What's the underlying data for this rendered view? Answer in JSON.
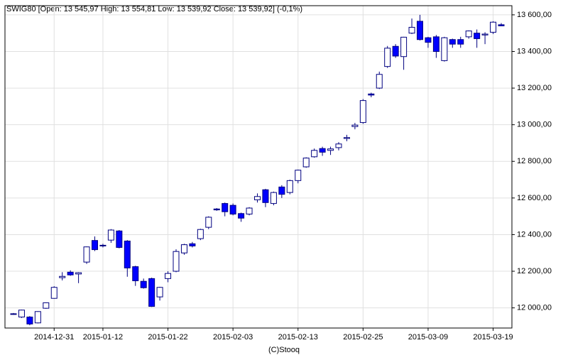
{
  "chart_data": {
    "type": "candlestick",
    "title": "SWIG80 [Open: 13 545,97  High: 13 554,81  Low: 13 539,92  Close: 13 539,92] (-0,1%)",
    "footer": "(C)Stooq",
    "categories": [
      null,
      null,
      null,
      null,
      null,
      "2014-12-31",
      null,
      null,
      null,
      null,
      null,
      "2015-01-12",
      null,
      null,
      null,
      null,
      null,
      null,
      null,
      "2015-01-22",
      null,
      null,
      null,
      null,
      null,
      null,
      null,
      "2015-02-03",
      null,
      null,
      null,
      null,
      null,
      null,
      null,
      "2015-02-13",
      null,
      null,
      null,
      null,
      null,
      null,
      null,
      "2015-02-25",
      null,
      null,
      null,
      null,
      null,
      null,
      null,
      "2015-03-09",
      null,
      null,
      null,
      null,
      null,
      null,
      null,
      "2015-03-19",
      null
    ],
    "open": [
      11965,
      11950,
      11950,
      11918,
      11998,
      12052,
      12165,
      12195,
      12185,
      12250,
      12368,
      12342,
      12370,
      12420,
      12365,
      12225,
      12145,
      12160,
      12060,
      12160,
      12200,
      12300,
      12350,
      12378,
      12440,
      12540,
      12570,
      12560,
      12515,
      12512,
      12590,
      12645,
      12570,
      12660,
      12630,
      12695,
      12770,
      12825,
      12870,
      12860,
      12875,
      12925,
      12990,
      13012,
      13168,
      13200,
      13318,
      13428,
      13372,
      13500,
      13565,
      13475,
      13480,
      13350,
      13465,
      13465,
      13480,
      13500,
      13490,
      13505,
      13545.97
    ],
    "high": [
      11972,
      11990,
      11955,
      11982,
      12030,
      12118,
      12195,
      12205,
      12195,
      12335,
      12390,
      12350,
      12430,
      12425,
      12370,
      12230,
      12160,
      12165,
      12115,
      12200,
      12320,
      12350,
      12360,
      12432,
      12500,
      12545,
      12575,
      12570,
      12520,
      12550,
      12625,
      12650,
      12635,
      12670,
      12700,
      12755,
      12822,
      12870,
      12880,
      12880,
      12905,
      12945,
      13010,
      13140,
      13175,
      13290,
      13430,
      13440,
      13480,
      13580,
      13600,
      13480,
      13490,
      13480,
      13470,
      13480,
      13515,
      13520,
      13505,
      13565,
      13554.81
    ],
    "low": [
      11962,
      11945,
      11905,
      11915,
      11995,
      12050,
      12150,
      12175,
      12135,
      12240,
      12310,
      12330,
      12355,
      12325,
      12170,
      12120,
      12105,
      12005,
      12040,
      12140,
      12195,
      12290,
      12330,
      12370,
      12430,
      12530,
      12500,
      12505,
      12470,
      12505,
      12575,
      12550,
      12560,
      12600,
      12620,
      12680,
      12765,
      12820,
      12830,
      12835,
      12860,
      12910,
      12975,
      13005,
      13150,
      13195,
      13310,
      13365,
      13300,
      13495,
      13460,
      13420,
      13365,
      13345,
      13420,
      13420,
      13470,
      13420,
      13440,
      13495,
      13539.92
    ],
    "close": [
      11968,
      11988,
      11912,
      11980,
      12028,
      12112,
      12172,
      12180,
      12192,
      12333,
      12318,
      12338,
      12425,
      12330,
      12218,
      12148,
      12110,
      12008,
      12112,
      12188,
      12308,
      12345,
      12338,
      12428,
      12495,
      12535,
      12525,
      12512,
      12490,
      12545,
      12608,
      12575,
      12630,
      12620,
      12695,
      12752,
      12818,
      12860,
      12850,
      12868,
      12895,
      12930,
      12998,
      13132,
      13162,
      13275,
      13418,
      13375,
      13478,
      13532,
      13465,
      13450,
      13400,
      13475,
      13440,
      13440,
      13512,
      13470,
      13495,
      13560,
      13539.92
    ],
    "up_color": "#ffffff",
    "down_color": "#0000ff",
    "outline_color": "#000080",
    "ylim": [
      11890,
      13650
    ],
    "yticks": [
      {
        "value": 12000,
        "label": "12 000,00"
      },
      {
        "value": 12200,
        "label": "12 200,00"
      },
      {
        "value": 12400,
        "label": "12 400,00"
      },
      {
        "value": 12600,
        "label": "12 600,00"
      },
      {
        "value": 12800,
        "label": "12 800,00"
      },
      {
        "value": 13000,
        "label": "13 000,00"
      },
      {
        "value": 13200,
        "label": "13 200,00"
      },
      {
        "value": 13400,
        "label": "13 400,00"
      },
      {
        "value": 13600,
        "label": "13 600,00"
      }
    ],
    "grid": true
  }
}
